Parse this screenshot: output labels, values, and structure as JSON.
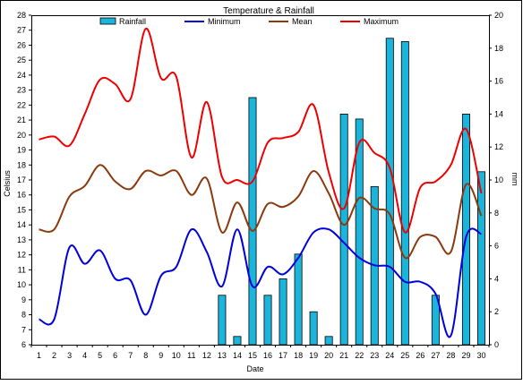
{
  "chart_data": {
    "type": "bar+line",
    "title": "Temperature & Rainfall",
    "xlabel": "Date",
    "ylabel_left": "Celsius",
    "ylabel_right": "mm",
    "legend_position": "top",
    "grid": false,
    "categories": [
      "1",
      "2",
      "3",
      "4",
      "5",
      "6",
      "7",
      "8",
      "9",
      "10",
      "11",
      "12",
      "13",
      "14",
      "15",
      "16",
      "17",
      "18",
      "19",
      "20",
      "21",
      "22",
      "23",
      "24",
      "25",
      "26",
      "27",
      "28",
      "29",
      "30"
    ],
    "x": [
      1,
      2,
      3,
      4,
      5,
      6,
      7,
      8,
      9,
      10,
      11,
      12,
      13,
      14,
      15,
      16,
      17,
      18,
      19,
      20,
      21,
      22,
      23,
      24,
      25,
      26,
      27,
      28,
      29,
      30
    ],
    "y_left": {
      "min": 6,
      "max": 28,
      "ticks": [
        6,
        7,
        8,
        9,
        10,
        11,
        12,
        13,
        14,
        15,
        16,
        17,
        18,
        19,
        20,
        21,
        22,
        23,
        24,
        25,
        26,
        27,
        28
      ]
    },
    "y_right": {
      "min": 0,
      "max": 20,
      "ticks": [
        0,
        2,
        4,
        6,
        8,
        10,
        12,
        14,
        16,
        18,
        20
      ]
    },
    "series": [
      {
        "name": "Rainfall",
        "kind": "bar",
        "axis": "right",
        "color": "#1BB5DC",
        "values": [
          0,
          0,
          0,
          0,
          0,
          0,
          0,
          0,
          0,
          0,
          0,
          0,
          3,
          0.5,
          15,
          3,
          4,
          5.5,
          2,
          0.5,
          14,
          13.7,
          9.6,
          18.6,
          18.4,
          0,
          3,
          0,
          14,
          10.5
        ]
      },
      {
        "name": "Minimum",
        "kind": "line",
        "axis": "left",
        "color": "#0000DD",
        "values": [
          7.7,
          7.7,
          12.5,
          11.4,
          12.3,
          10.4,
          10.3,
          8.0,
          10.6,
          11.2,
          13.7,
          12.2,
          9.9,
          13.7,
          9.9,
          11.2,
          10.7,
          11.8,
          13.5,
          13.7,
          12.8,
          11.8,
          11.3,
          11.2,
          10.2,
          10.2,
          9.4,
          6.6,
          13.2,
          13.4
        ]
      },
      {
        "name": "Mean",
        "kind": "line",
        "axis": "left",
        "color": "#8B3A0F",
        "values": [
          13.7,
          13.7,
          15.9,
          16.6,
          18.0,
          16.9,
          16.4,
          17.6,
          17.3,
          17.6,
          16.0,
          17.1,
          13.5,
          15.5,
          13.6,
          15.4,
          15.2,
          15.9,
          17.6,
          16.1,
          14.0,
          15.8,
          15.1,
          14.7,
          11.8,
          13.2,
          13.2,
          12.2,
          16.7,
          14.6
        ]
      },
      {
        "name": "Maximum",
        "kind": "line",
        "axis": "left",
        "color": "#EE0000",
        "values": [
          19.7,
          19.9,
          19.3,
          21.4,
          23.7,
          23.4,
          22.4,
          27.1,
          23.8,
          23.9,
          18.5,
          22.2,
          17.2,
          17.0,
          16.9,
          19.5,
          19.8,
          20.2,
          22.0,
          17.5,
          15.1,
          19.5,
          18.8,
          17.8,
          13.5,
          16.5,
          16.9,
          18.0,
          20.4,
          16.1
        ]
      }
    ]
  }
}
